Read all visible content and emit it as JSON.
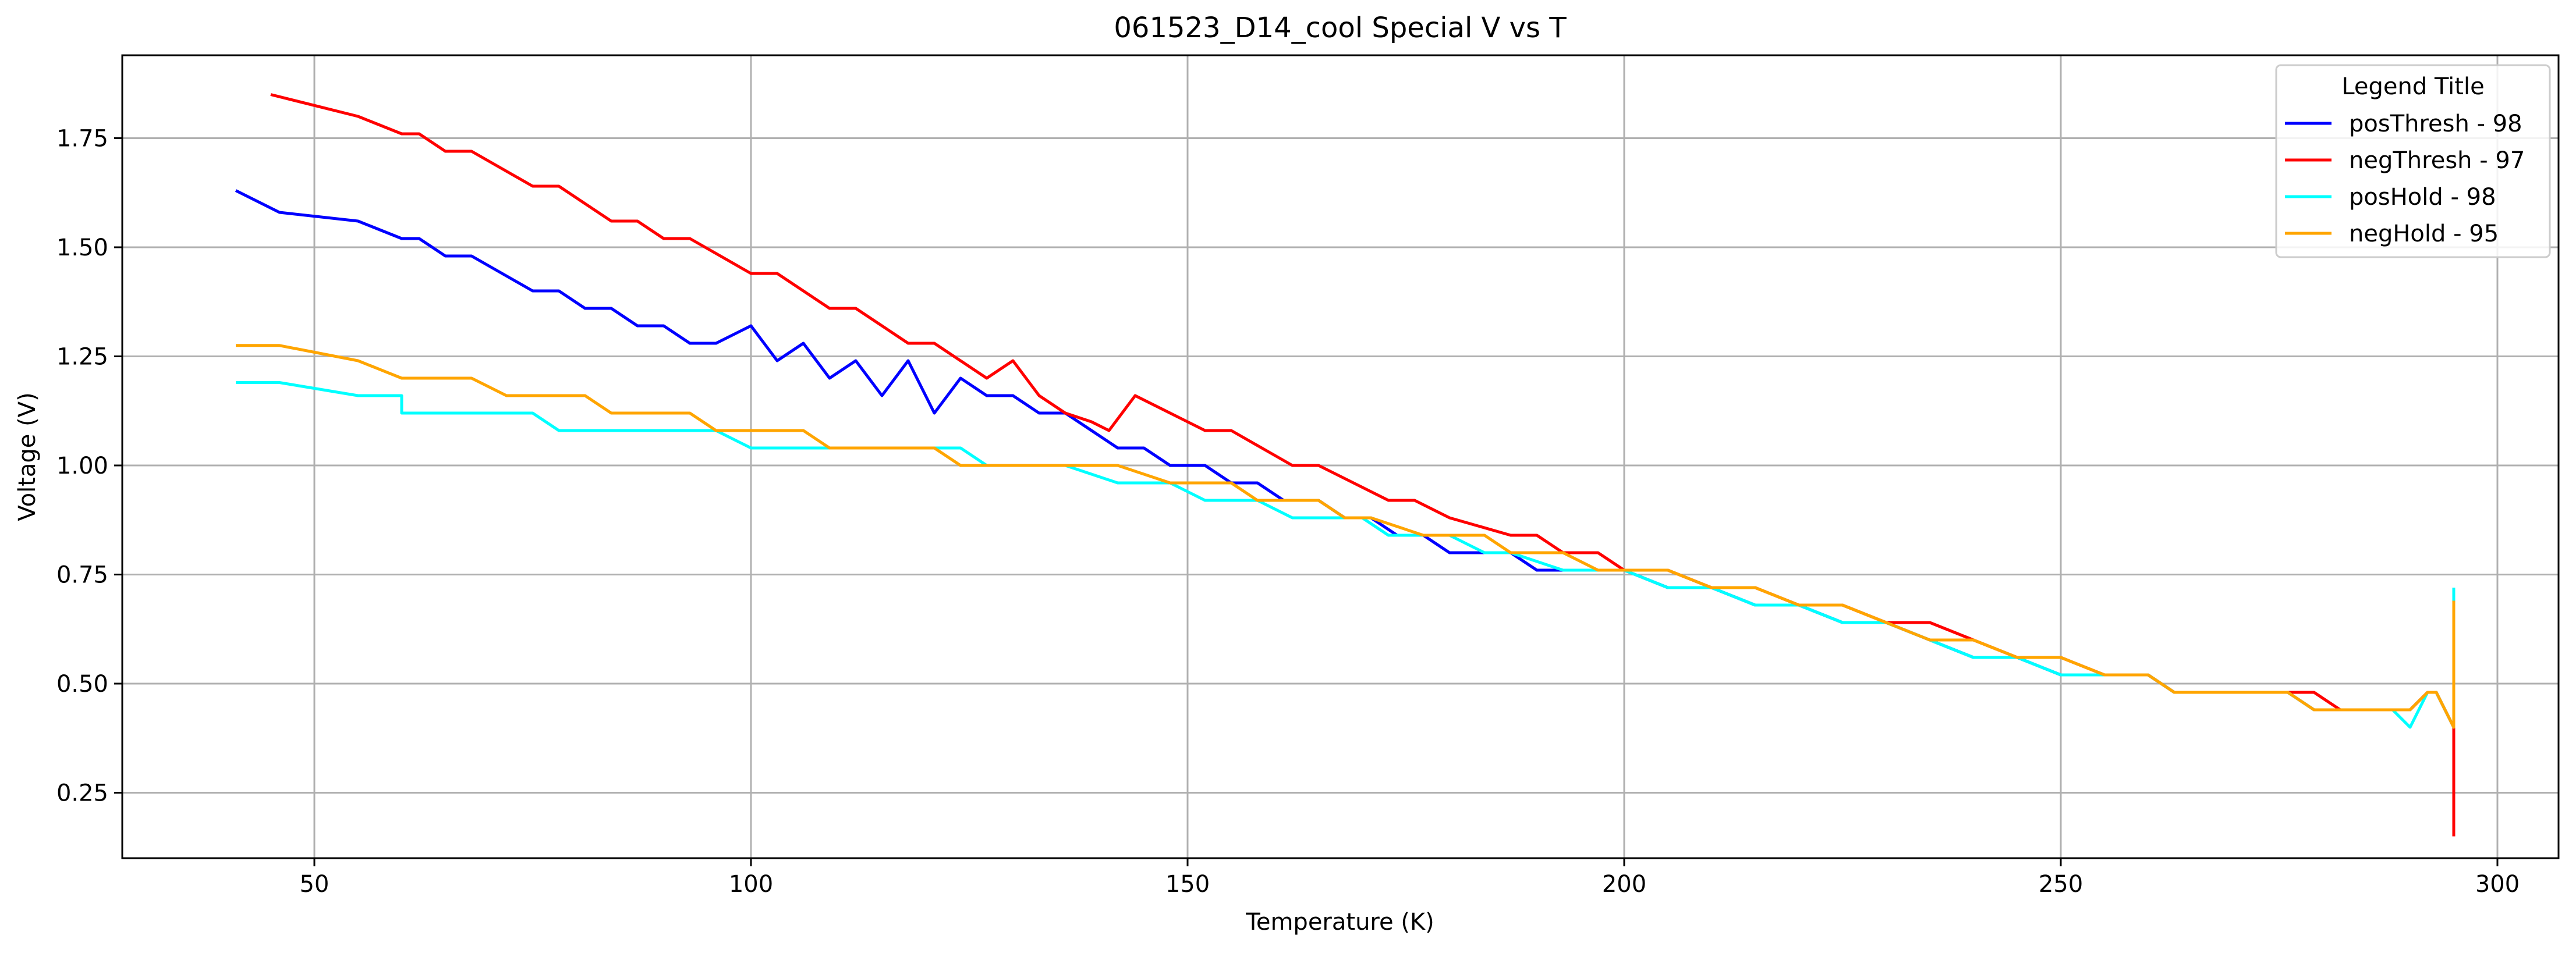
{
  "chart_data": {
    "type": "line",
    "title": "061523_D14_cool Special V vs T",
    "xlabel": "Temperature (K)",
    "ylabel": "Voltage (V)",
    "xlim": [
      28,
      307
    ],
    "ylim": [
      0.1,
      1.94
    ],
    "xticks": [
      50,
      100,
      150,
      200,
      250,
      300
    ],
    "yticks": [
      0.25,
      0.5,
      0.75,
      1.0,
      1.25,
      1.5,
      1.75
    ],
    "xtick_labels": [
      "50",
      "100",
      "150",
      "200",
      "250",
      "300"
    ],
    "ytick_labels": [
      "0.25",
      "0.50",
      "0.75",
      "1.00",
      "1.25",
      "1.50",
      "1.75"
    ],
    "grid": true,
    "legend": {
      "title": "Legend Title",
      "position": "top-right"
    },
    "series": [
      {
        "name": "posThresh - 98",
        "color": "#0000ff",
        "x": [
          41,
          46,
          55,
          60,
          62,
          65,
          68,
          75,
          78,
          81,
          84,
          87,
          90,
          93,
          96,
          100,
          103,
          106,
          109,
          112,
          115,
          118,
          121,
          124,
          127,
          130,
          133,
          136,
          139,
          142,
          145,
          148,
          152,
          155,
          158,
          161,
          165,
          168,
          171,
          174,
          177,
          180,
          183,
          187,
          190,
          193,
          197,
          200,
          205,
          210,
          215,
          220,
          225,
          230,
          235,
          240,
          245,
          250,
          255,
          260,
          263,
          270,
          276,
          279,
          282,
          285,
          288,
          290,
          292,
          293,
          294,
          295,
          295
        ],
        "y": [
          1.63,
          1.58,
          1.56,
          1.52,
          1.52,
          1.48,
          1.48,
          1.4,
          1.4,
          1.36,
          1.36,
          1.32,
          1.32,
          1.28,
          1.28,
          1.32,
          1.24,
          1.28,
          1.2,
          1.24,
          1.16,
          1.24,
          1.12,
          1.2,
          1.16,
          1.16,
          1.12,
          1.12,
          1.08,
          1.04,
          1.04,
          1.0,
          1.0,
          0.96,
          0.96,
          0.92,
          0.92,
          0.88,
          0.88,
          0.84,
          0.84,
          0.8,
          0.8,
          0.8,
          0.76,
          0.76,
          0.76,
          0.76,
          0.72,
          0.72,
          0.68,
          0.68,
          0.64,
          0.64,
          0.6,
          0.56,
          0.56,
          0.52,
          0.52,
          0.52,
          0.48,
          0.48,
          0.48,
          0.44,
          0.44,
          0.44,
          0.44,
          0.44,
          0.48,
          0.48,
          0.44,
          0.4,
          0.46
        ]
      },
      {
        "name": "negThresh - 97",
        "color": "#ff0000",
        "x": [
          45,
          55,
          60,
          62,
          65,
          68,
          75,
          78,
          84,
          87,
          90,
          93,
          100,
          103,
          109,
          112,
          118,
          121,
          127,
          130,
          133,
          136,
          139,
          141,
          144,
          148,
          152,
          155,
          162,
          165,
          173,
          176,
          180,
          187,
          190,
          193,
          197,
          200,
          205,
          210,
          215,
          220,
          225,
          230,
          235,
          240,
          245,
          250,
          255,
          260,
          263,
          270,
          276,
          279,
          282,
          285,
          288,
          290,
          292,
          293,
          294,
          295,
          295
        ],
        "y": [
          1.85,
          1.8,
          1.76,
          1.76,
          1.72,
          1.72,
          1.64,
          1.64,
          1.56,
          1.56,
          1.52,
          1.52,
          1.44,
          1.44,
          1.36,
          1.36,
          1.28,
          1.28,
          1.2,
          1.24,
          1.16,
          1.12,
          1.1,
          1.08,
          1.16,
          1.12,
          1.08,
          1.08,
          1.0,
          1.0,
          0.92,
          0.92,
          0.88,
          0.84,
          0.84,
          0.8,
          0.8,
          0.76,
          0.76,
          0.72,
          0.72,
          0.68,
          0.68,
          0.64,
          0.64,
          0.6,
          0.56,
          0.56,
          0.52,
          0.52,
          0.48,
          0.48,
          0.48,
          0.48,
          0.44,
          0.44,
          0.44,
          0.44,
          0.48,
          0.48,
          0.44,
          0.4,
          0.15
        ]
      },
      {
        "name": "posHold - 98",
        "color": "#00ffff",
        "x": [
          41,
          46,
          55,
          60,
          60,
          68,
          75,
          78,
          84,
          90,
          96,
          100,
          103,
          109,
          115,
          121,
          124,
          127,
          133,
          136,
          139,
          142,
          145,
          148,
          152,
          155,
          158,
          162,
          165,
          170,
          173,
          177,
          180,
          184,
          187,
          190,
          193,
          197,
          200,
          205,
          210,
          215,
          220,
          225,
          230,
          235,
          240,
          245,
          250,
          255,
          260,
          263,
          270,
          276,
          279,
          282,
          285,
          288,
          290,
          292,
          293,
          294,
          295,
          295
        ],
        "y": [
          1.19,
          1.19,
          1.16,
          1.16,
          1.12,
          1.12,
          1.12,
          1.08,
          1.08,
          1.08,
          1.08,
          1.04,
          1.04,
          1.04,
          1.04,
          1.04,
          1.04,
          1.0,
          1.0,
          1.0,
          0.98,
          0.96,
          0.96,
          0.96,
          0.92,
          0.92,
          0.92,
          0.88,
          0.88,
          0.88,
          0.84,
          0.84,
          0.84,
          0.8,
          0.8,
          0.78,
          0.76,
          0.76,
          0.76,
          0.72,
          0.72,
          0.68,
          0.68,
          0.64,
          0.64,
          0.6,
          0.56,
          0.56,
          0.52,
          0.52,
          0.52,
          0.48,
          0.48,
          0.48,
          0.44,
          0.44,
          0.44,
          0.44,
          0.4,
          0.48,
          0.48,
          0.44,
          0.4,
          0.72
        ]
      },
      {
        "name": "negHold - 95",
        "color": "#ffa500",
        "x": [
          41,
          46,
          55,
          60,
          68,
          72,
          78,
          81,
          84,
          93,
          96,
          100,
          106,
          109,
          115,
          121,
          124,
          127,
          133,
          139,
          142,
          145,
          148,
          155,
          158,
          165,
          168,
          171,
          177,
          180,
          184,
          187,
          190,
          193,
          197,
          200,
          205,
          210,
          215,
          220,
          225,
          230,
          235,
          240,
          245,
          250,
          255,
          260,
          263,
          270,
          276,
          279,
          282,
          285,
          288,
          290,
          292,
          293,
          294,
          295,
          295
        ],
        "y": [
          1.275,
          1.275,
          1.24,
          1.2,
          1.2,
          1.16,
          1.16,
          1.16,
          1.12,
          1.12,
          1.08,
          1.08,
          1.08,
          1.04,
          1.04,
          1.04,
          1.0,
          1.0,
          1.0,
          1.0,
          1.0,
          0.98,
          0.96,
          0.96,
          0.92,
          0.92,
          0.88,
          0.88,
          0.84,
          0.84,
          0.84,
          0.8,
          0.8,
          0.8,
          0.76,
          0.76,
          0.76,
          0.72,
          0.72,
          0.68,
          0.68,
          0.64,
          0.6,
          0.6,
          0.56,
          0.56,
          0.52,
          0.52,
          0.48,
          0.48,
          0.48,
          0.44,
          0.44,
          0.44,
          0.44,
          0.44,
          0.48,
          0.48,
          0.44,
          0.4,
          0.69
        ]
      }
    ]
  }
}
